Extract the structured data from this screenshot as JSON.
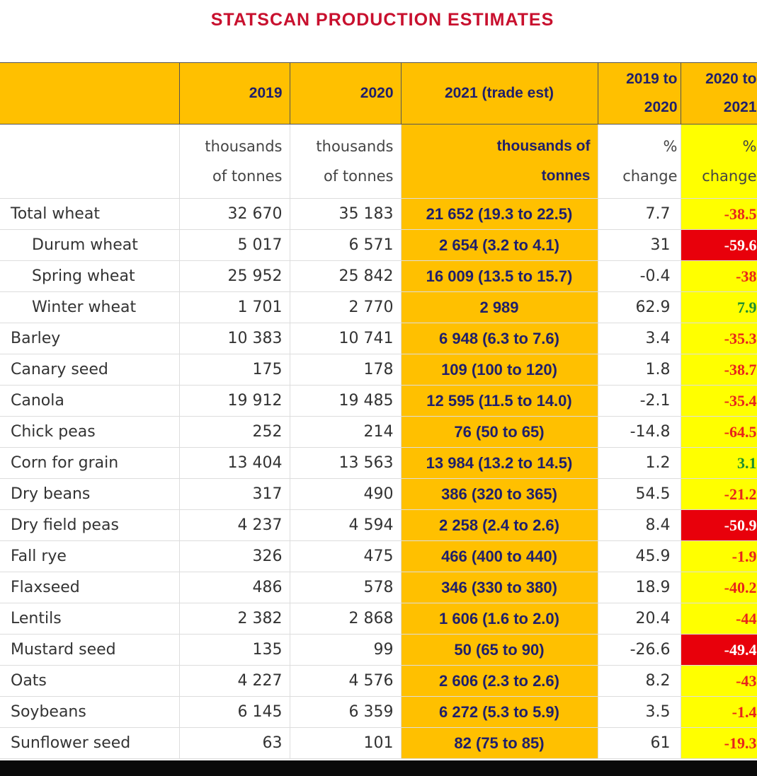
{
  "title": "STATSCAN PRODUCTION ESTIMATES",
  "header": {
    "col_2019": "2019",
    "col_2020": "2020",
    "col_2021": "2021 (trade est)",
    "col_1920_line1": "2019 to",
    "col_1920_line2": "2020",
    "col_2021pct_line1": "2020 to",
    "col_2021pct_line2": "2021"
  },
  "units": {
    "u2019_line1": "thousands",
    "u2019_line2": "of tonnes",
    "u2020_line1": "thousands",
    "u2020_line2": "of tonnes",
    "u2021_line1": "thousands of",
    "u2021_line2": "tonnes",
    "upct1_line1": "%",
    "upct1_line2": "change",
    "upct2_line1": "%",
    "upct2_line2": "change"
  },
  "colors": {
    "header_bg": "#ffc000",
    "pct_bg": "#ffff00",
    "alarm_bg": "#e8000b",
    "title": "#c8102e"
  },
  "rows": [
    {
      "crop": "Total wheat",
      "v2019": "32 670",
      "v2020": "35 183",
      "v2021": "21 652 (19.3 to 22.5)",
      "pct1920": "7.7",
      "pct2021": "-38.5",
      "style": "neg",
      "indent": false
    },
    {
      "crop": "Durum wheat",
      "v2019": "5 017",
      "v2020": "6 571",
      "v2021": "2 654 (3.2 to 4.1)",
      "pct1920": "31",
      "pct2021": "-59.6",
      "style": "alarm",
      "indent": true
    },
    {
      "crop": "Spring wheat",
      "v2019": "25 952",
      "v2020": "25 842",
      "v2021": "16 009 (13.5 to 15.7)",
      "pct1920": "-0.4",
      "pct2021": "-38",
      "style": "neg",
      "indent": true
    },
    {
      "crop": "Winter wheat",
      "v2019": "1 701",
      "v2020": "2 770",
      "v2021": "2 989",
      "pct1920": "62.9",
      "pct2021": "7.9",
      "style": "pos",
      "indent": true
    },
    {
      "crop": "Barley",
      "v2019": "10 383",
      "v2020": "10 741",
      "v2021": "6 948 (6.3 to 7.6)",
      "pct1920": "3.4",
      "pct2021": "-35.3",
      "style": "neg",
      "indent": false
    },
    {
      "crop": "Canary seed",
      "v2019": "175",
      "v2020": "178",
      "v2021": "109 (100 to 120)",
      "pct1920": "1.8",
      "pct2021": "-38.7",
      "style": "neg",
      "indent": false
    },
    {
      "crop": "Canola",
      "v2019": "19 912",
      "v2020": "19 485",
      "v2021": "12 595 (11.5 to 14.0)",
      "pct1920": "-2.1",
      "pct2021": "-35.4",
      "style": "neg",
      "indent": false
    },
    {
      "crop": "Chick peas",
      "v2019": "252",
      "v2020": "214",
      "v2021": "76 (50 to 65)",
      "pct1920": "-14.8",
      "pct2021": "-64.5",
      "style": "neg",
      "indent": false
    },
    {
      "crop": "Corn for grain",
      "v2019": "13 404",
      "v2020": "13 563",
      "v2021": "13 984 (13.2 to 14.5)",
      "pct1920": "1.2",
      "pct2021": "3.1",
      "style": "pos",
      "indent": false
    },
    {
      "crop": "Dry beans",
      "v2019": "317",
      "v2020": "490",
      "v2021": "386 (320 to 365)",
      "pct1920": "54.5",
      "pct2021": "-21.2",
      "style": "neg",
      "indent": false
    },
    {
      "crop": "Dry field peas",
      "v2019": "4 237",
      "v2020": "4 594",
      "v2021": "2 258 (2.4 to 2.6)",
      "pct1920": "8.4",
      "pct2021": "-50.9",
      "style": "alarm",
      "indent": false
    },
    {
      "crop": "Fall rye",
      "v2019": "326",
      "v2020": "475",
      "v2021": "466 (400 to 440)",
      "pct1920": "45.9",
      "pct2021": "-1.9",
      "style": "neg",
      "indent": false
    },
    {
      "crop": "Flaxseed",
      "v2019": "486",
      "v2020": "578",
      "v2021": "346 (330 to 380)",
      "pct1920": "18.9",
      "pct2021": "-40.2",
      "style": "neg",
      "indent": false
    },
    {
      "crop": "Lentils",
      "v2019": "2 382",
      "v2020": "2 868",
      "v2021": "1 606 (1.6 to 2.0)",
      "pct1920": "20.4",
      "pct2021": "-44",
      "style": "neg",
      "indent": false
    },
    {
      "crop": "Mustard seed",
      "v2019": "135",
      "v2020": "99",
      "v2021": "50 (65 to 90)",
      "pct1920": "-26.6",
      "pct2021": "-49.4",
      "style": "alarm",
      "indent": false
    },
    {
      "crop": "Oats",
      "v2019": "4 227",
      "v2020": "4 576",
      "v2021": "2 606 (2.3 to 2.6)",
      "pct1920": "8.2",
      "pct2021": "-43",
      "style": "neg",
      "indent": false
    },
    {
      "crop": "Soybeans",
      "v2019": "6 145",
      "v2020": "6 359",
      "v2021": "6 272 (5.3 to 5.9)",
      "pct1920": "3.5",
      "pct2021": "-1.4",
      "style": "neg",
      "indent": false
    },
    {
      "crop": "Sunflower seed",
      "v2019": "63",
      "v2020": "101",
      "v2021": "82 (75 to 85)",
      "pct1920": "61",
      "pct2021": "-19.3",
      "style": "neg",
      "indent": false
    }
  ]
}
